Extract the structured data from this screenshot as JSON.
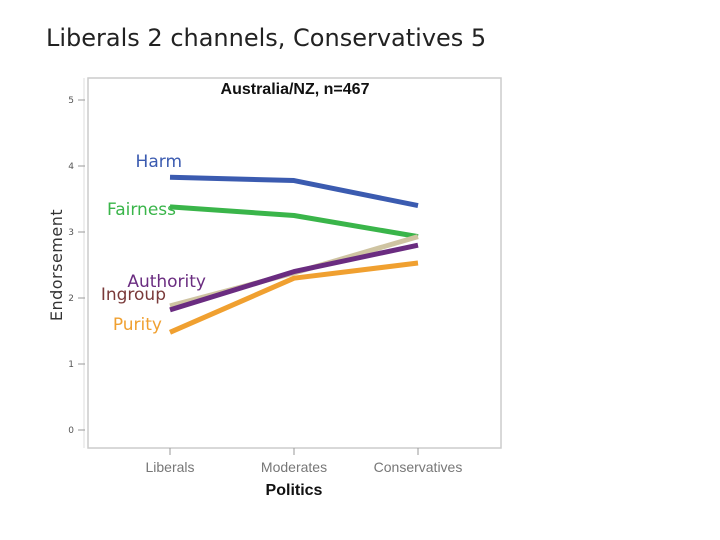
{
  "slide": {
    "title": "Liberals 2 channels, Conservatives 5"
  },
  "chart_data": {
    "type": "line",
    "title": "Australia/NZ, n=467",
    "xlabel": "Politics",
    "ylabel": "Endorsement",
    "categories": [
      "Liberals",
      "Moderates",
      "Conservatives"
    ],
    "yticks": [
      "0",
      "1",
      "2",
      "3",
      "4",
      "5"
    ],
    "ylim": [
      0,
      5
    ],
    "grid": false,
    "series": [
      {
        "name": "Harm",
        "values": [
          3.83,
          3.78,
          3.4
        ],
        "color": "#3b5bb0"
      },
      {
        "name": "Fairness",
        "values": [
          3.38,
          3.25,
          2.93
        ],
        "color": "#3ab54a"
      },
      {
        "name": "Ingroup",
        "values": [
          1.88,
          2.38,
          2.93
        ],
        "color": "#cfc4a2"
      },
      {
        "name": "Authority",
        "values": [
          1.82,
          2.4,
          2.8
        ],
        "color": "#6a2c80"
      },
      {
        "name": "Purity",
        "values": [
          1.48,
          2.3,
          2.53
        ],
        "color": "#f0a030"
      }
    ],
    "legend": "inline-left"
  }
}
